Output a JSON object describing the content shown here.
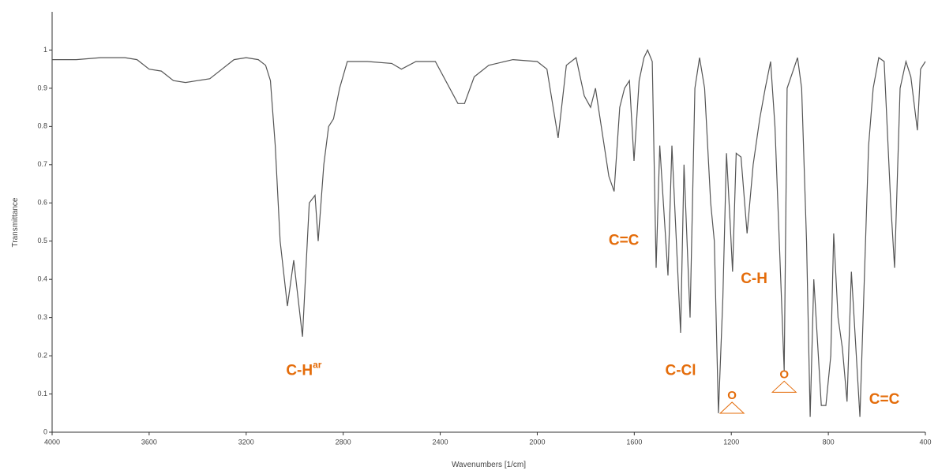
{
  "chart_data": {
    "type": "line",
    "xlabel": "Wavenumbers [1/cm]",
    "ylabel": "Transmittance",
    "xlim": [
      4000,
      400
    ],
    "ylim": [
      0,
      1.1
    ],
    "xticks": [
      4000,
      3600,
      3200,
      2800,
      2400,
      2000,
      1600,
      1200,
      800,
      400
    ],
    "yticks": [
      0,
      0.1,
      0.2,
      0.3,
      0.4,
      0.5,
      0.6,
      0.7,
      0.8,
      0.9,
      1
    ],
    "color": "#555555",
    "x": [
      4000,
      3900,
      3800,
      3700,
      3650,
      3600,
      3550,
      3500,
      3450,
      3400,
      3350,
      3300,
      3250,
      3200,
      3150,
      3120,
      3100,
      3080,
      3060,
      3030,
      3004,
      2968,
      2940,
      2916,
      2903,
      2880,
      2860,
      2840,
      2815,
      2783,
      2700,
      2600,
      2560,
      2500,
      2420,
      2327,
      2300,
      2260,
      2200,
      2100,
      2000,
      1960,
      1914,
      1880,
      1840,
      1806,
      1780,
      1760,
      1705,
      1683,
      1660,
      1640,
      1620,
      1601,
      1580,
      1560,
      1545,
      1526,
      1510,
      1495,
      1461,
      1445,
      1409,
      1395,
      1370,
      1350,
      1331,
      1310,
      1285,
      1270,
      1253,
      1235,
      1220,
      1205,
      1195,
      1180,
      1160,
      1135,
      1110,
      1083,
      1060,
      1038,
      1020,
      982,
      970,
      927,
      910,
      890,
      875,
      860,
      829,
      810,
      790,
      778,
      760,
      742,
      723,
      705,
      670,
      634,
      615,
      592,
      570,
      543,
      527,
      504,
      480,
      460,
      433,
      420,
      400
    ],
    "values": [
      0.975,
      0.975,
      0.98,
      0.98,
      0.975,
      0.95,
      0.945,
      0.92,
      0.915,
      0.92,
      0.925,
      0.95,
      0.975,
      0.98,
      0.975,
      0.96,
      0.92,
      0.75,
      0.5,
      0.33,
      0.45,
      0.25,
      0.6,
      0.62,
      0.5,
      0.7,
      0.8,
      0.82,
      0.9,
      0.97,
      0.97,
      0.965,
      0.95,
      0.97,
      0.97,
      0.86,
      0.86,
      0.93,
      0.96,
      0.975,
      0.97,
      0.95,
      0.77,
      0.96,
      0.98,
      0.88,
      0.85,
      0.9,
      0.67,
      0.63,
      0.85,
      0.9,
      0.92,
      0.71,
      0.92,
      0.98,
      1.0,
      0.97,
      0.43,
      0.75,
      0.41,
      0.75,
      0.26,
      0.7,
      0.3,
      0.9,
      0.98,
      0.9,
      0.6,
      0.5,
      0.05,
      0.35,
      0.73,
      0.55,
      0.42,
      0.73,
      0.72,
      0.52,
      0.7,
      0.82,
      0.9,
      0.97,
      0.8,
      0.16,
      0.9,
      0.98,
      0.9,
      0.5,
      0.04,
      0.4,
      0.07,
      0.07,
      0.2,
      0.52,
      0.3,
      0.22,
      0.08,
      0.42,
      0.04,
      0.75,
      0.9,
      0.98,
      0.97,
      0.6,
      0.43,
      0.9,
      0.97,
      0.93,
      0.79,
      0.95,
      0.97
    ],
    "annotations": [
      {
        "text": "C-H",
        "sup": "ar",
        "x": 2962,
        "y": 0.16
      },
      {
        "text": "C=C",
        "x": 1643,
        "y": 0.5
      },
      {
        "text": "C-Cl",
        "x": 1409,
        "y": 0.16
      },
      {
        "text": "C-H",
        "x": 1106,
        "y": 0.4
      },
      {
        "text": "C=C",
        "x": 569,
        "y": 0.085
      }
    ],
    "epoxide_labels": [
      {
        "text": "O",
        "x": 1197,
        "y": 0.095
      },
      {
        "text": "O",
        "x": 982,
        "y": 0.15
      }
    ]
  }
}
